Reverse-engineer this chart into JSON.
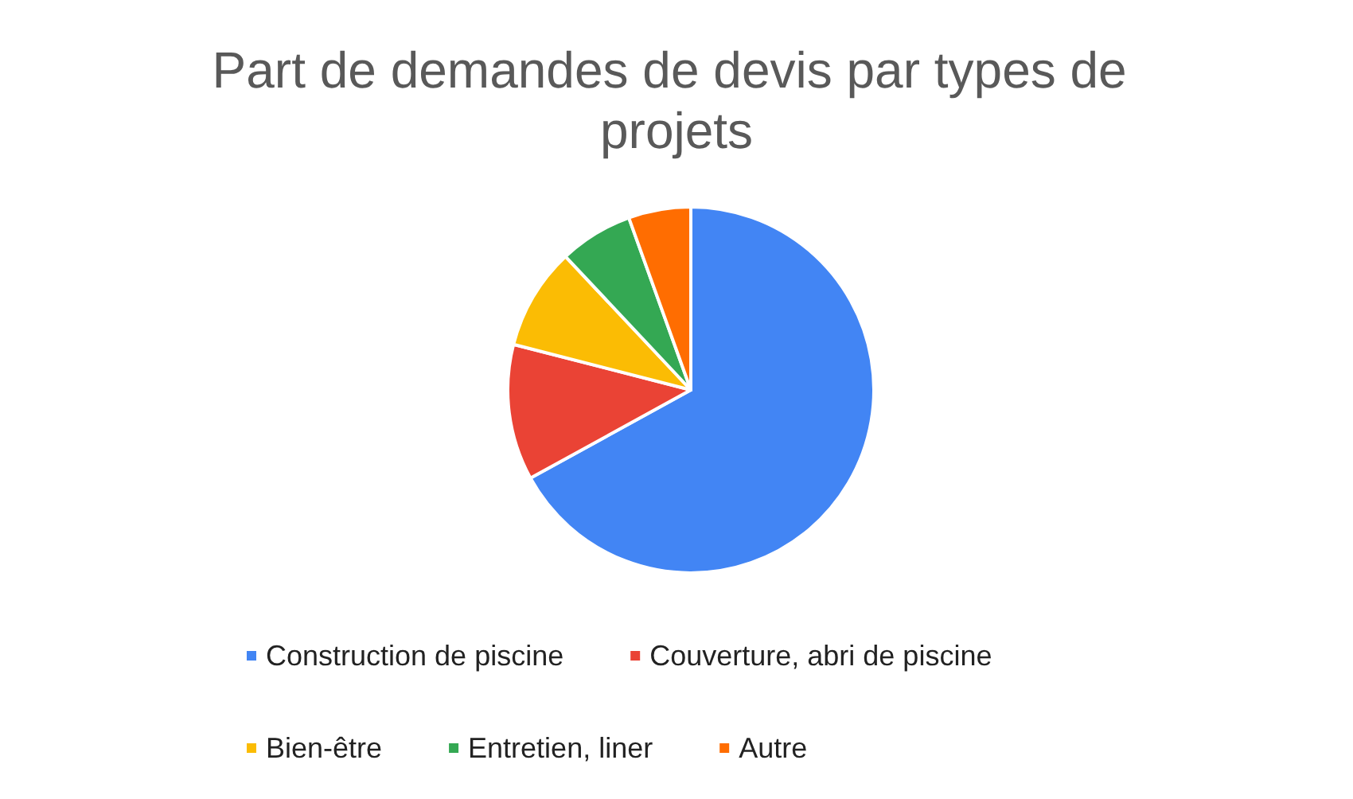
{
  "chart_data": {
    "type": "pie",
    "title": "Part de demandes de devis par types de projets",
    "categories": [
      "Construction de piscine",
      "Couverture, abri de piscine",
      "Bien-être",
      "Entretien, liner",
      "Autre"
    ],
    "values": [
      67,
      12,
      9,
      6.5,
      5.5
    ],
    "colors": [
      "#4285f4",
      "#ea4335",
      "#fbbc04",
      "#34a853",
      "#ff6d01"
    ],
    "legend": "bottom"
  }
}
